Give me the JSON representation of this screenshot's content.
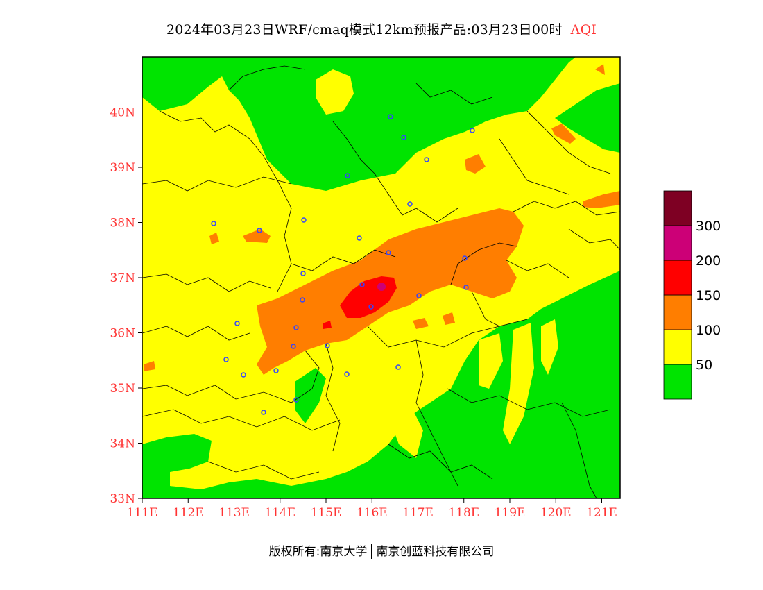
{
  "title": {
    "main": "2024年03月23日WRF/cmaq模式12km预报产品:03月23日00时",
    "variable": "AQI"
  },
  "map": {
    "lat_ticks": [
      "40N",
      "39N",
      "38N",
      "37N",
      "36N",
      "35N",
      "34N",
      "33N"
    ],
    "lon_ticks": [
      "111E",
      "112E",
      "113E",
      "114E",
      "115E",
      "116E",
      "117E",
      "118E",
      "119E",
      "120E",
      "121E"
    ],
    "extent": {
      "lon_min": 111,
      "lon_max": 121.4,
      "lat_min": 33,
      "lat_max": 41
    }
  },
  "legend": {
    "levels": [
      {
        "color": "#00e400"
      },
      {
        "label": "50",
        "color": "#ffff00"
      },
      {
        "label": "100",
        "color": "#ff7e00"
      },
      {
        "label": "150",
        "color": "#ff0000"
      },
      {
        "label": "200",
        "color": "#cc0077"
      },
      {
        "label": "300",
        "color": "#7e0023"
      }
    ]
  },
  "footer": {
    "left": "版权所有:南京大学",
    "right": "南京创蓝科技有限公司"
  },
  "colors": {
    "good": "#00e400",
    "moderate": "#ffff00",
    "usg": "#ff7e00",
    "unhealthy": "#ff0000",
    "very_unhealthy": "#cc0077",
    "hazardous": "#7e0023",
    "axis_label": "#ff3333",
    "station": "#3344ff"
  }
}
